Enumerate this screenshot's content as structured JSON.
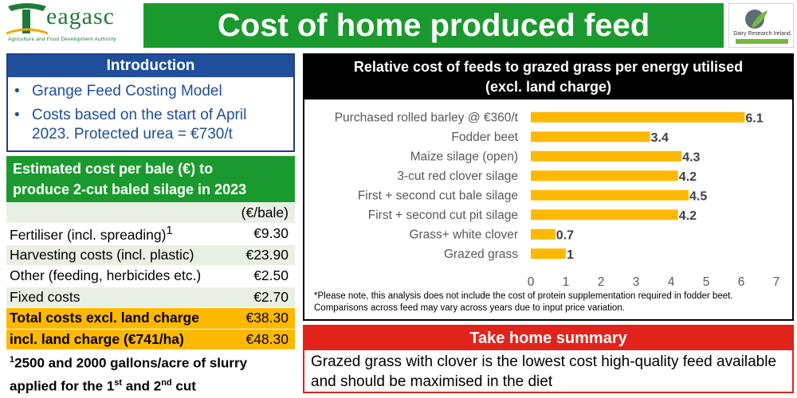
{
  "header": {
    "logo_left_word": "eagasc",
    "logo_left_sub": "Agriculture and Food Development Authority",
    "title": "Cost of home produced feed",
    "logo_right_text": "Dairy Research Ireland"
  },
  "intro": {
    "heading": "Introduction",
    "bullets": [
      "Grange Feed Costing Model",
      "Costs based on the start of April 2023. Protected urea = €730/t"
    ]
  },
  "cost_table": {
    "heading_line1": "Estimated cost per bale (€) to",
    "heading_line2": "produce 2-cut baled silage in 2023",
    "unit": "(€/bale)",
    "rows": [
      {
        "label": "Fertiliser (incl. spreading)",
        "sup": "1",
        "value": "€9.30"
      },
      {
        "label": "Harvesting costs (incl. plastic)",
        "sup": "",
        "value": "€23.90"
      },
      {
        "label": "Other (feeding, herbicides etc.)",
        "sup": "",
        "value": "€2.50"
      },
      {
        "label": "Fixed costs",
        "sup": "",
        "value": "€2.70"
      },
      {
        "label": "Total costs excl. land charge",
        "sup": "",
        "value": "€38.30"
      },
      {
        "label": "incl. land charge (€741/ha)",
        "sup": "",
        "value": "€48.30"
      }
    ],
    "footnote_sup": "1",
    "footnote_text1": "2500 and 2000 gallons/acre of slurry",
    "footnote_text2a": "applied for the 1",
    "footnote_sup2": "st",
    "footnote_text2b": " and 2",
    "footnote_sup3": "nd",
    "footnote_text2c": " cut"
  },
  "chart_panel": {
    "heading_line1": "Relative cost of feeds to grazed grass per energy utilised",
    "heading_line2": "(excl. land charge)",
    "note": "*Please note, this analysis does not include the cost of protein supplementation required in fodder beet. Comparisons across feed may vary across years due to input price variation."
  },
  "chart_data": {
    "type": "bar",
    "orientation": "horizontal",
    "categories": [
      "Purchased rolled barley @ €360/t",
      "Fodder beet",
      "Maize silage (open)",
      "3-cut red clover silage",
      "First + second cut bale silage",
      "First + second cut pit silage",
      "Grass+ white clover",
      "Grazed grass"
    ],
    "values": [
      6.1,
      3.4,
      4.3,
      4.2,
      4.5,
      4.2,
      0.7,
      1
    ],
    "data_labels": [
      "6.1",
      "3.4",
      "4.3",
      "4.2",
      "4.5",
      "4.2",
      "0.7",
      "1"
    ],
    "x_ticks": [
      "0",
      "1",
      "2",
      "3",
      "4",
      "5",
      "6",
      "7"
    ],
    "xlim": [
      0,
      7
    ],
    "bar_color": "#ffb800",
    "grid": false
  },
  "summary": {
    "heading": "Take home summary",
    "text": "Grazed grass with clover is the lowest cost high-quality feed available and should be maximised in the diet"
  }
}
